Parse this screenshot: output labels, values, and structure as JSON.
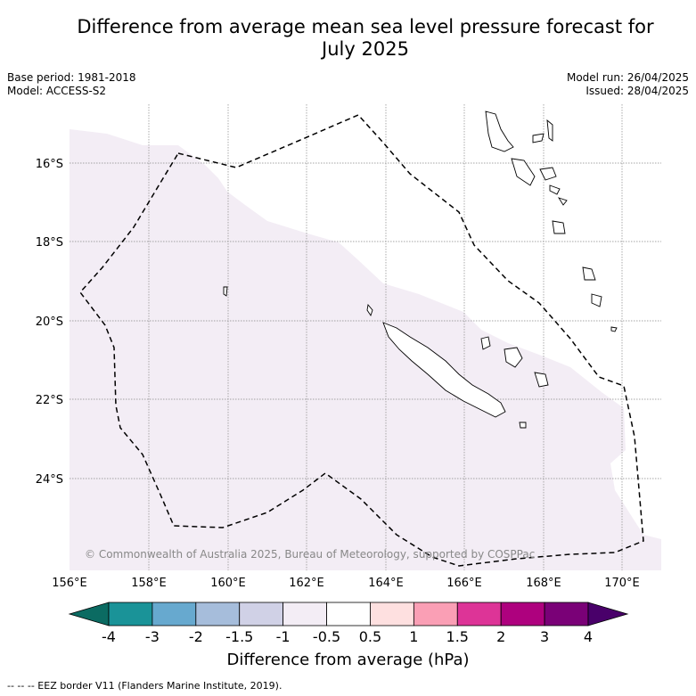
{
  "header": {
    "title_line1": "Difference from average mean sea level pressure forecast for",
    "title_line2": "July 2025",
    "base_period": "Base period: 1981-2018",
    "model": "Model: ACCESS-S2",
    "model_run": "Model run: 26/04/2025",
    "issued": "Issued: 28/04/2025"
  },
  "map": {
    "lon_labels": [
      "156°E",
      "158°E",
      "160°E",
      "162°E",
      "164°E",
      "166°E",
      "168°E",
      "170°E"
    ],
    "lat_labels": [
      "16°S",
      "18°S",
      "20°S",
      "22°S",
      "24°S"
    ],
    "copyright": "© Commonwealth of Australia 2025, Bureau of Meteorology, supported by COSPPac",
    "shading_color": "#f3edf5",
    "eez_color": "#000000"
  },
  "colorbar": {
    "labels": [
      "-4",
      "-3",
      "-2",
      "-1.5",
      "-1",
      "-0.5",
      "0.5",
      "1",
      "1.5",
      "2",
      "3",
      "4"
    ],
    "colors": [
      "#0b6b62",
      "#1a9398",
      "#67a9cf",
      "#a6bddb",
      "#d0d1e6",
      "#f3edf5",
      "#ffffff",
      "#fee0e0",
      "#fa9fb5",
      "#dd3497",
      "#ae017e",
      "#7a0177",
      "#49006a"
    ],
    "title": "Difference from average (hPa)"
  },
  "footer": {
    "eez_note": "--  --  -- EEZ border V11 (Flanders Marine Institute, 2019)."
  }
}
